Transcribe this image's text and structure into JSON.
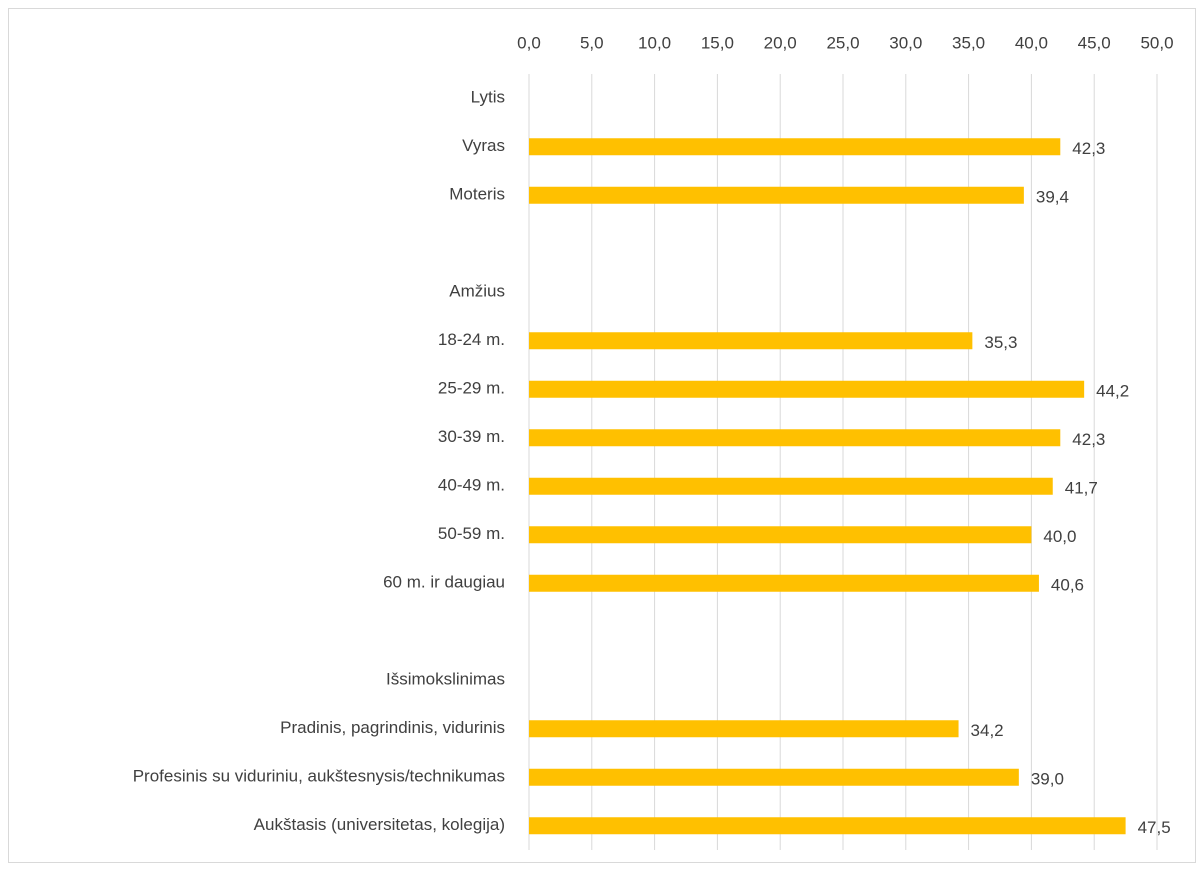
{
  "chart_data": {
    "type": "hbar",
    "categories": [
      "Lytis",
      "Vyras",
      "Moteris",
      null,
      "Amžius",
      "18-24 m.",
      "25-29 m.",
      "30-39 m.",
      "40-49 m.",
      "50-59 m.",
      "60 m. ir daugiau",
      null,
      "Išsimokslinimas",
      "Pradinis, pagrindinis, vidurinis",
      "Profesinis su viduriniu, aukštesnysis/technikumas",
      "Aukštasis (universitetas, kolegija)"
    ],
    "values": [
      null,
      42.3,
      39.4,
      null,
      null,
      35.3,
      44.2,
      42.3,
      41.7,
      40.0,
      40.6,
      null,
      null,
      34.2,
      39.0,
      47.5
    ],
    "value_labels": [
      null,
      "42,3",
      "39,4",
      null,
      null,
      "35,3",
      "44,2",
      "42,3",
      "41,7",
      "40,0",
      "40,6",
      null,
      null,
      "34,2",
      "39,0",
      "47,5"
    ],
    "color": "#ffc000",
    "xlim": [
      0,
      50
    ],
    "xticks": [
      {
        "value": 0,
        "label": "0,0"
      },
      {
        "value": 5,
        "label": "5,0"
      },
      {
        "value": 10,
        "label": "10,0"
      },
      {
        "value": 15,
        "label": "15,0"
      },
      {
        "value": 20,
        "label": "20,0"
      },
      {
        "value": 25,
        "label": "25,0"
      },
      {
        "value": 30,
        "label": "30,0"
      },
      {
        "value": 35,
        "label": "35,0"
      },
      {
        "value": 40,
        "label": "40,0"
      },
      {
        "value": 45,
        "label": "45,0"
      },
      {
        "value": 50,
        "label": "50,0"
      }
    ],
    "grid": true
  }
}
